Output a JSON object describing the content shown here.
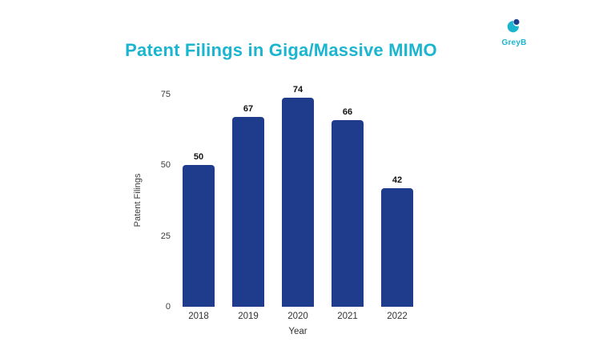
{
  "page": {
    "background_color": "#ffffff"
  },
  "logo": {
    "text": "GreyB",
    "teal_color": "#1CB5CF",
    "navy_color": "#1F3C8C"
  },
  "chart_data": {
    "type": "bar",
    "title": "Patent Filings in Giga/Massive MIMO",
    "categories": [
      "2018",
      "2019",
      "2020",
      "2021",
      "2022"
    ],
    "values": [
      50,
      67,
      74,
      66,
      42
    ],
    "xlabel": "Year",
    "ylabel": "Patent Filings",
    "ylim": [
      0,
      75
    ],
    "yticks": [
      0,
      25,
      50,
      75
    ],
    "bar_color": "#1F3C8C",
    "title_color": "#1CB5CF",
    "value_label_color": "#121212",
    "grid": false,
    "legend": false
  }
}
